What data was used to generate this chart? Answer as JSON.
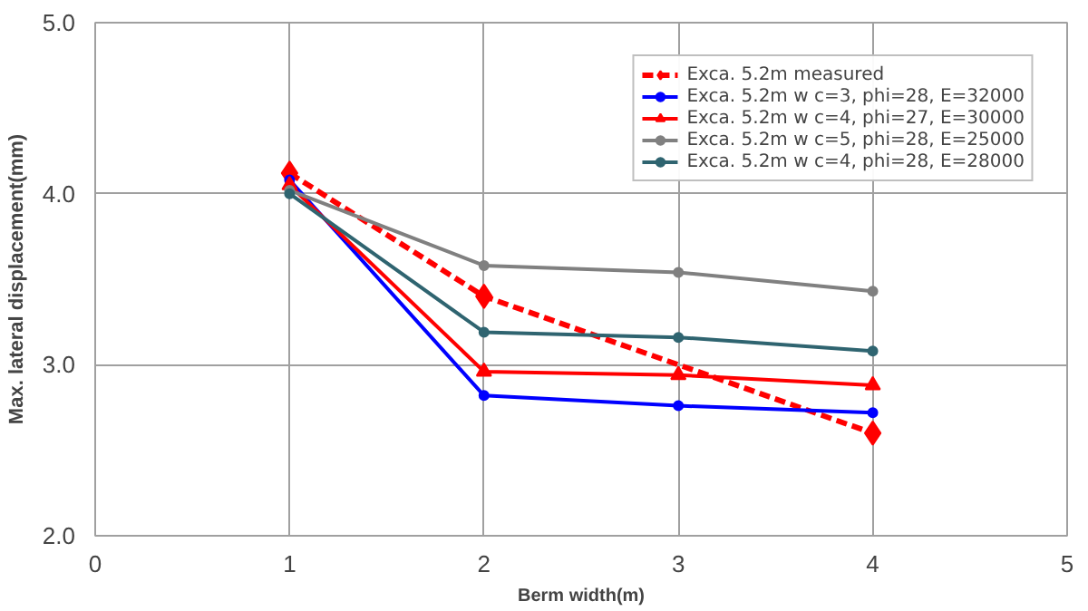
{
  "chart_data": {
    "type": "line",
    "xlabel": "Berm width(m)",
    "ylabel": "Max. lateral displacement(mm)",
    "x": [
      1,
      2,
      3,
      4
    ],
    "xlim": [
      0,
      5
    ],
    "xticks": [
      0,
      1,
      2,
      3,
      4,
      5
    ],
    "ylim": [
      2.0,
      5.0
    ],
    "yticks": [
      {
        "value": 2.0,
        "label": "2.0"
      },
      {
        "value": 3.0,
        "label": "3.0"
      },
      {
        "value": 4.0,
        "label": "4.0"
      },
      {
        "value": 5.0,
        "label": "5.0"
      }
    ],
    "grid": true,
    "legend": "top right",
    "marker": "circle",
    "line_style": "solid",
    "series": [
      {
        "name": "Exca. 5.2m measured",
        "color": "#ff0000",
        "x": [
          1,
          2,
          4
        ],
        "values": [
          4.12,
          3.4,
          2.6
        ],
        "marker": "diamond",
        "line_style": "dashed"
      },
      {
        "name": "Exca. 5.2m w c=3, phi=28, E=32000",
        "color": "#0000ff",
        "values": [
          4.08,
          2.82,
          2.76,
          2.72
        ]
      },
      {
        "name": "Exca. 5.2m w c=4, phi=27, E=30000",
        "color": "#ff0000",
        "values": [
          4.05,
          2.96,
          2.94,
          2.88
        ],
        "marker": "triangle"
      },
      {
        "name": "Exca. 5.2m w c=5, phi=28, E=25000",
        "color": "#808080",
        "values": [
          4.02,
          3.58,
          3.54,
          3.43
        ]
      },
      {
        "name": "Exca. 5.2m w c=4, phi=28, E=28000",
        "color": "#2f6470",
        "values": [
          4.0,
          3.19,
          3.16,
          3.08
        ]
      }
    ]
  }
}
